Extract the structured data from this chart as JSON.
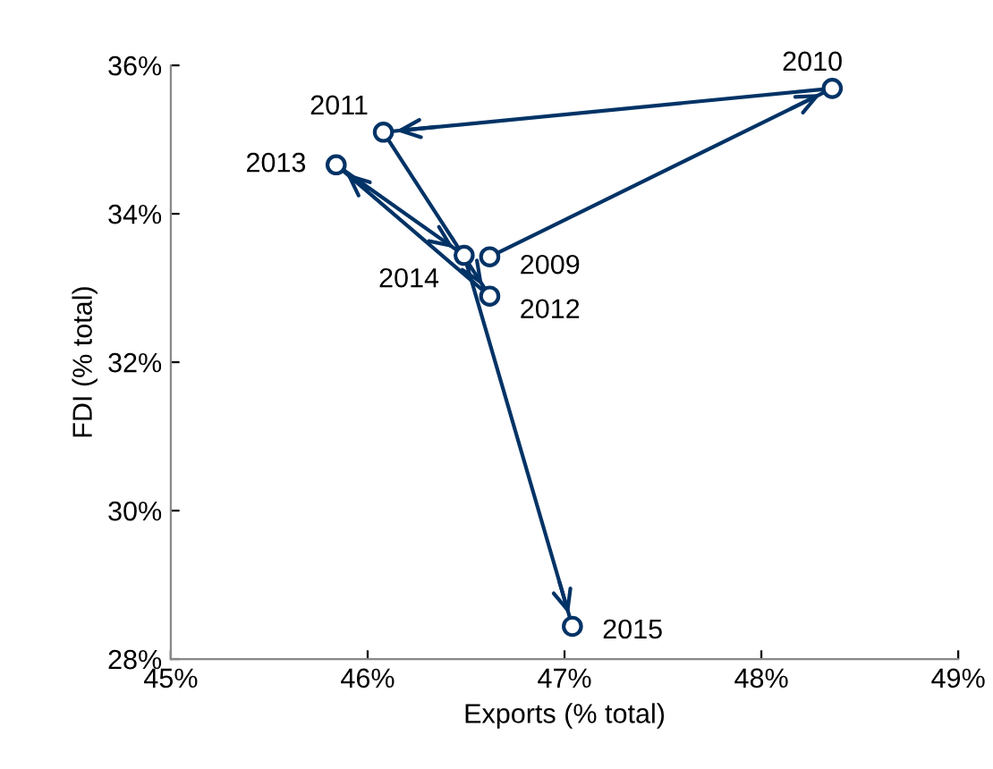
{
  "chart_data": {
    "type": "line",
    "xlabel": "Exports (% total)",
    "ylabel": "FDI (% total)",
    "x": [
      46.62,
      48.36,
      46.08,
      46.62,
      45.84,
      46.49,
      47.04
    ],
    "series": [
      {
        "color": "#003366",
        "values": [
          33.42,
          35.69,
          35.1,
          32.89,
          34.66,
          33.44,
          28.44
        ]
      }
    ],
    "annotations": [
      {
        "text": "2009",
        "x": 46.62,
        "y": 33.42
      },
      {
        "text": "2010",
        "x": 48.36,
        "y": 35.69
      },
      {
        "text": "2011",
        "x": 46.08,
        "y": 35.1
      },
      {
        "text": "2012",
        "x": 46.62,
        "y": 32.89
      },
      {
        "text": "2013",
        "x": 45.84,
        "y": 34.66
      },
      {
        "text": "2014",
        "x": 46.49,
        "y": 33.44
      },
      {
        "text": "2015",
        "x": 47.04,
        "y": 28.44
      }
    ],
    "xlim": [
      45,
      49
    ],
    "ylim": [
      28,
      36
    ],
    "xticks": [
      {
        "value": 45,
        "label": "45%"
      },
      {
        "value": 46,
        "label": "46%"
      },
      {
        "value": 47,
        "label": "47%"
      },
      {
        "value": 48,
        "label": "48%"
      },
      {
        "value": 49,
        "label": "49%"
      }
    ],
    "yticks": [
      {
        "value": 28,
        "label": "28%"
      },
      {
        "value": 30,
        "label": "30%"
      },
      {
        "value": 32,
        "label": "32%"
      },
      {
        "value": 34,
        "label": "34%"
      },
      {
        "value": 36,
        "label": "36%"
      }
    ],
    "marker": "circle",
    "line_style": "solid",
    "grid": false,
    "legend": false
  }
}
